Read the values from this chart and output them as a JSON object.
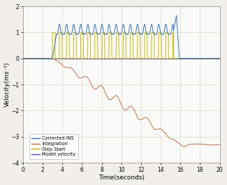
{
  "title": "",
  "xlabel": "Time(seconds)",
  "ylabel": "Velocity(ms⁻¹)",
  "xlim": [
    0,
    20
  ],
  "ylim": [
    -4,
    2
  ],
  "yticks": [
    -4,
    -3,
    -2,
    -1,
    0,
    1,
    2
  ],
  "xticks": [
    0,
    2,
    4,
    6,
    8,
    10,
    12,
    14,
    16,
    18,
    20
  ],
  "corrected_ins_color": "#3070B8",
  "integration_color": "#B8704A",
  "step_start_color": "#C8B800",
  "model_velocity_color": "#5050A0",
  "bg_color": "#F2EFEA",
  "ax_bg_color": "#FAFAF8",
  "grid_color": "#DDDDCC",
  "legend_labels": [
    "Corrected INS",
    "Integration",
    "Step Start",
    "Model velocity"
  ],
  "step_start_time": 3.0,
  "step_end_time": 15.3,
  "step_period": 0.72,
  "step_duty": 0.38,
  "integration_start": 3.0,
  "integration_end_flat": 16.0,
  "integration_final": -3.3
}
